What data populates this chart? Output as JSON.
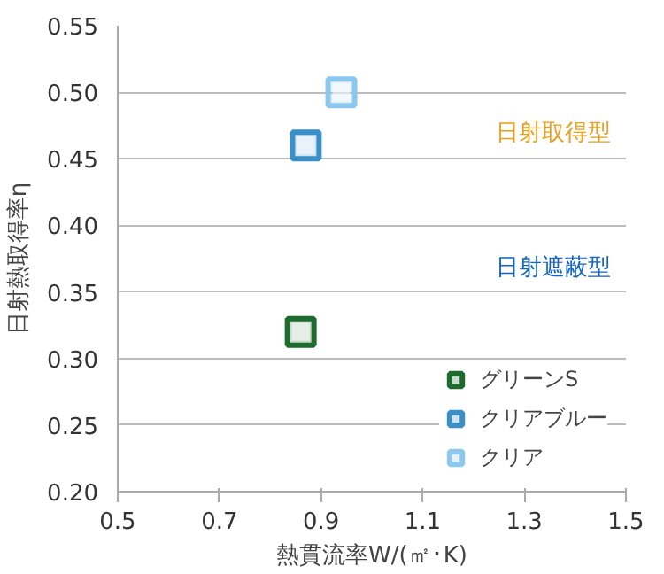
{
  "chart_data": {
    "type": "scatter",
    "xlabel": "熱貫流率W/(㎡･K)",
    "ylabel": "日射熱取得率η",
    "series": [
      {
        "name": "グリーンS",
        "color": "#1e6b2e",
        "x": [
          0.86
        ],
        "values": [
          0.32
        ]
      },
      {
        "name": "クリアブルー",
        "color": "#3b8fc8",
        "x": [
          0.87
        ],
        "values": [
          0.46
        ]
      },
      {
        "name": "クリア",
        "color": "#8cc8ee",
        "x": [
          0.94
        ],
        "values": [
          0.5
        ]
      }
    ],
    "annotations": [
      "日射取得型",
      "日射遮蔽型"
    ],
    "xlim": [
      0.5,
      1.5
    ],
    "xticks": [
      0.5,
      0.7,
      0.9,
      1.1,
      1.3,
      1.5
    ],
    "ylim": [
      0.2,
      0.55
    ],
    "yticks": [
      {
        "value": 0.2,
        "label": "0.20"
      },
      0.25,
      {
        "value": 0.3,
        "label": "0.30"
      },
      0.35,
      {
        "value": 0.4,
        "label": "0.40"
      },
      0.45,
      {
        "value": 0.5,
        "label": "0.50"
      },
      0.55
    ],
    "grid": "y",
    "legend": "bottom right",
    "marker": "square"
  }
}
